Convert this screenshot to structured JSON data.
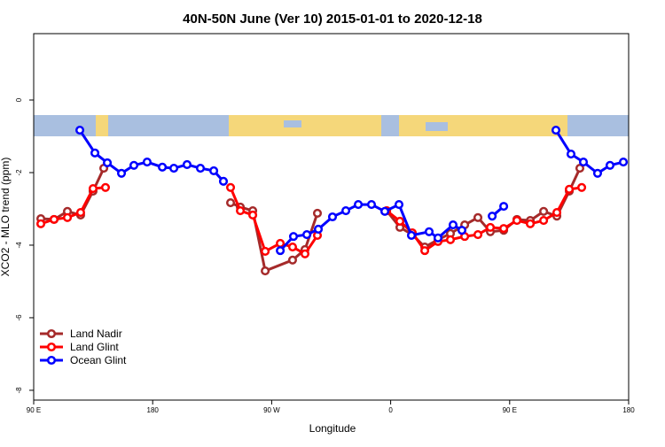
{
  "chart_data": {
    "type": "line",
    "title": "40N-50N June (Ver 10)   2015-01-01 to 2020-12-18",
    "x_label": "Longitude",
    "y_label": "XCO2 - MLO trend (ppm)",
    "xlim": [
      90,
      540
    ],
    "xticks": [
      {
        "value": 90,
        "label": "90 E"
      },
      180,
      {
        "value": 270,
        "label": "90 W"
      },
      {
        "value": 360,
        "label": "0"
      },
      {
        "value": 450,
        "label": "90 E"
      },
      {
        "value": 540,
        "label": "180"
      }
    ],
    "ylim": [
      -8.27,
      1.83
    ],
    "yticks": [
      0,
      -2,
      -4,
      -6,
      -8
    ],
    "legend": "bottom-left",
    "series": [
      {
        "name": "Land Nadir",
        "color": "#a52a2a",
        "x": [
          95.4,
          105.4,
          115.5,
          125.5,
          134.9,
          143.0,
          null,
          238.9,
          246.3,
          255.7,
          265.1,
          285.8,
          295.2,
          304.6,
          null,
          357.0,
          367.0,
          376.4,
          385.8,
          395.8,
          405.2,
          416.0,
          426.0,
          435.4,
          445.5,
          455.5,
          465.6,
          475.7,
          485.7,
          495.1,
          503.1
        ],
        "values": [
          -3.27,
          -3.29,
          -3.07,
          -3.17,
          -2.51,
          -1.88,
          null,
          -2.83,
          -2.95,
          -3.05,
          -4.71,
          -4.41,
          -4.12,
          -3.12,
          null,
          -3.05,
          -3.51,
          -3.71,
          -4.05,
          -3.85,
          -3.68,
          -3.44,
          -3.24,
          -3.63,
          -3.59,
          -3.29,
          -3.32,
          -3.07,
          -3.2,
          -2.51,
          -1.88
        ]
      },
      {
        "name": "Land Glint",
        "color": "#ff0000",
        "x": [
          95.4,
          105.4,
          115.5,
          125.5,
          134.9,
          144.3,
          null,
          238.9,
          246.3,
          255.7,
          265.1,
          276.5,
          285.8,
          295.2,
          304.6,
          null,
          357.0,
          367.0,
          376.4,
          385.8,
          395.8,
          405.2,
          416.0,
          426.0,
          435.4,
          445.5,
          455.5,
          465.6,
          475.7,
          485.7,
          495.1,
          504.5
        ],
        "values": [
          -3.41,
          -3.29,
          -3.24,
          -3.1,
          -2.44,
          -2.41,
          null,
          -2.41,
          -3.05,
          -3.17,
          -4.17,
          -3.95,
          -4.05,
          -4.24,
          -3.73,
          null,
          -3.05,
          -3.34,
          -3.66,
          -4.15,
          -3.9,
          -3.85,
          -3.76,
          -3.71,
          -3.51,
          -3.54,
          -3.32,
          -3.41,
          -3.32,
          -3.1,
          -2.46,
          -2.41
        ]
      },
      {
        "name": "Ocean Glint",
        "color": "#0000ff",
        "x": [
          124.9,
          136.3,
          145.7,
          156.4,
          165.8,
          175.8,
          187.3,
          196.0,
          206.0,
          216.1,
          226.2,
          233.5,
          null,
          276.5,
          286.5,
          296.6,
          305.3,
          316.0,
          326.1,
          335.5,
          345.5,
          355.6,
          366.3,
          375.7,
          389.1,
          395.8,
          407.2,
          413.9,
          null,
          436.8,
          445.5,
          null,
          485.0,
          496.4,
          505.8,
          516.5,
          525.9,
          536.0
        ],
        "values": [
          -0.83,
          -1.46,
          -1.73,
          -2.02,
          -1.8,
          -1.71,
          -1.85,
          -1.88,
          -1.78,
          -1.88,
          -1.95,
          -2.24,
          null,
          -4.15,
          -3.76,
          -3.71,
          -3.56,
          -3.22,
          -3.05,
          -2.88,
          -2.88,
          -3.07,
          -2.88,
          -3.73,
          -3.63,
          -3.8,
          -3.44,
          -3.59,
          null,
          -3.2,
          -2.93,
          null,
          -0.83,
          -1.49,
          -1.71,
          -2.02,
          -1.8,
          -1.71
        ]
      }
    ]
  }
}
